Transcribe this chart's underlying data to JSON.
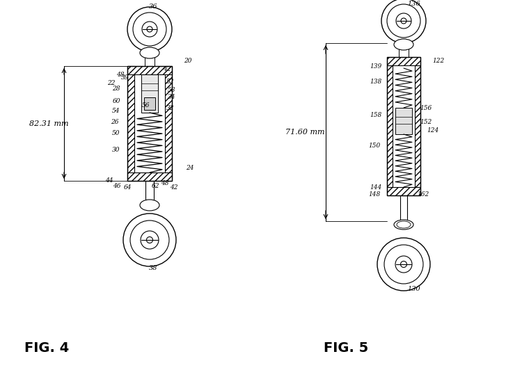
{
  "fig4_label": "FIG. 4",
  "fig5_label": "FIG. 5",
  "fig4_dim": "82.31 mm",
  "fig5_dim": "71.60 mm",
  "bg_color": "#ffffff",
  "line_color": "#000000",
  "figsize": [
    7.5,
    5.55
  ],
  "dpi": 100
}
